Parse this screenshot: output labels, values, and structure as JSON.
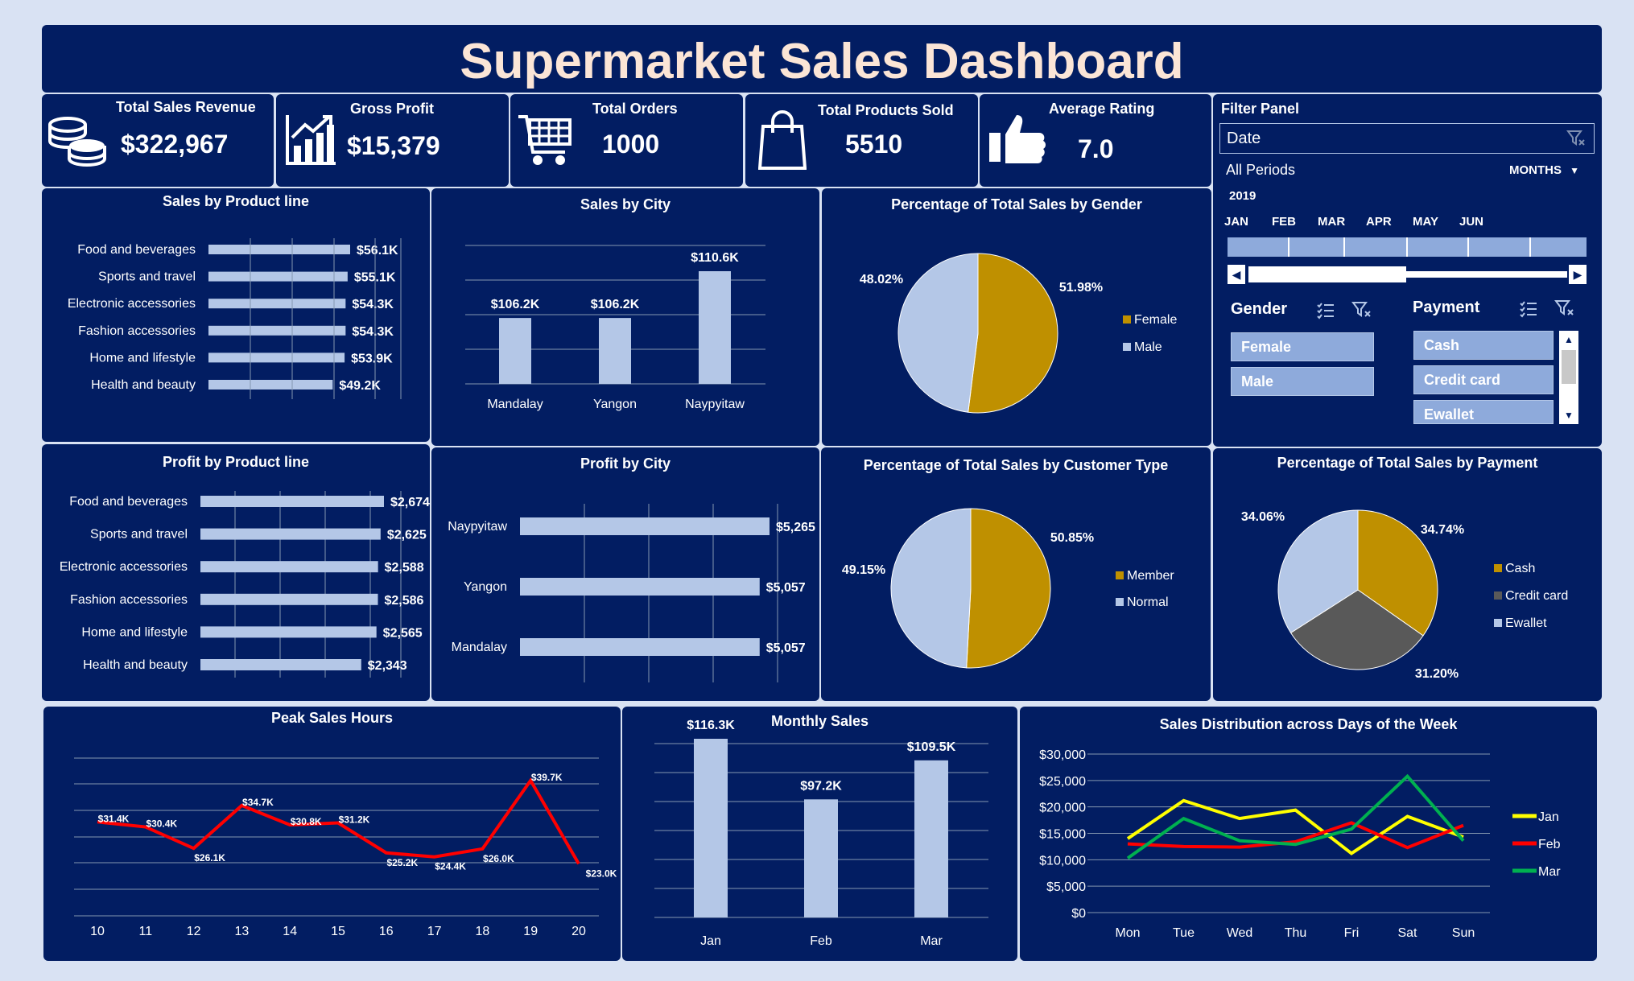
{
  "title": "Supermarket Sales Dashboard",
  "colors": {
    "panel": "#021d62",
    "bar": "#b4c7e7",
    "gold": "#bf9000",
    "grey": "#595959",
    "red": "#ff0000",
    "yellow": "#ffff00",
    "green": "#00b050"
  },
  "kpis": [
    {
      "label": "Total Sales Revenue",
      "value": "$322,967",
      "icon": "coins-icon"
    },
    {
      "label": "Gross Profit",
      "value": "$15,379",
      "icon": "bar-chart-icon"
    },
    {
      "label": "Total Orders",
      "value": "1000",
      "icon": "shopping-cart-icon"
    },
    {
      "label": "Total Products Sold",
      "value": "5510",
      "icon": "shopping-bag-icon"
    },
    {
      "label": "Average Rating",
      "value": "7.0",
      "icon": "thumbs-up-icon"
    }
  ],
  "filter": {
    "title": "Filter Panel",
    "date_label": "Date",
    "all_periods": "All Periods",
    "months_label": "MONTHS",
    "year": "2019",
    "months": [
      "JAN",
      "FEB",
      "MAR",
      "APR",
      "MAY",
      "JUN"
    ],
    "gender_label": "Gender",
    "gender_options": [
      "Female",
      "Male"
    ],
    "payment_label": "Payment",
    "payment_options": [
      "Cash",
      "Credit card",
      "Ewallet"
    ]
  },
  "chart_data": [
    {
      "id": "sales_product",
      "type": "bar",
      "orientation": "horizontal",
      "title": "Sales by Product line",
      "categories": [
        "Food and beverages",
        "Sports and travel",
        "Electronic accessories",
        "Fashion accessories",
        "Home and lifestyle",
        "Health and beauty"
      ],
      "values": [
        56.1,
        55.1,
        54.3,
        54.3,
        53.9,
        49.2
      ],
      "labels": [
        "$56.1K",
        "$55.1K",
        "$54.3K",
        "$54.3K",
        "$53.9K",
        "$49.2K"
      ]
    },
    {
      "id": "sales_city",
      "type": "bar",
      "title": "Sales by City",
      "categories": [
        "Mandalay",
        "Yangon",
        "Naypyitaw"
      ],
      "values": [
        106.2,
        106.2,
        110.6
      ],
      "labels": [
        "$106.2K",
        "$106.2K",
        "$110.6K"
      ]
    },
    {
      "id": "gender_pie",
      "type": "pie",
      "title": "Percentage of Total Sales by Gender",
      "categories": [
        "Female",
        "Male"
      ],
      "values": [
        51.98,
        48.02
      ],
      "labels": [
        "51.98%",
        "48.02%"
      ]
    },
    {
      "id": "profit_product",
      "type": "bar",
      "orientation": "horizontal",
      "title": "Profit by Product line",
      "categories": [
        "Food and beverages",
        "Sports and travel",
        "Electronic accessories",
        "Fashion accessories",
        "Home and lifestyle",
        "Health and beauty"
      ],
      "values": [
        2674,
        2625,
        2588,
        2586,
        2565,
        2343
      ],
      "labels": [
        "$2,674",
        "$2,625",
        "$2,588",
        "$2,586",
        "$2,565",
        "$2,343"
      ]
    },
    {
      "id": "profit_city",
      "type": "bar",
      "orientation": "horizontal",
      "title": "Profit by City",
      "categories": [
        "Naypyitaw",
        "Yangon",
        "Mandalay"
      ],
      "values": [
        5265,
        5057,
        5057
      ],
      "labels": [
        "$5,265",
        "$5,057",
        "$5,057"
      ]
    },
    {
      "id": "customer_pie",
      "type": "pie",
      "title": "Percentage of Total Sales by Customer Type",
      "categories": [
        "Member",
        "Normal"
      ],
      "values": [
        50.85,
        49.15
      ],
      "labels": [
        "50.85%",
        "49.15%"
      ]
    },
    {
      "id": "payment_pie",
      "type": "pie",
      "title": "Percentage of Total Sales by Payment",
      "categories": [
        "Cash",
        "Credit card",
        "Ewallet"
      ],
      "values": [
        34.74,
        31.2,
        34.06
      ],
      "labels": [
        "34.74%",
        "31.20%",
        "34.06%"
      ]
    },
    {
      "id": "peak_hours",
      "type": "line",
      "title": "Peak Sales Hours",
      "x": [
        "10",
        "11",
        "12",
        "13",
        "14",
        "15",
        "16",
        "17",
        "18",
        "19",
        "20"
      ],
      "values": [
        31.4,
        30.4,
        26.1,
        34.7,
        30.8,
        31.2,
        25.2,
        24.4,
        26.0,
        39.7,
        23.0
      ],
      "labels": [
        "$31.4K",
        "$30.4K",
        "$26.1K",
        "$34.7K",
        "$30.8K",
        "$31.2K",
        "$25.2K",
        "$24.4K",
        "$26.0K",
        "$39.7K",
        "$23.0K"
      ]
    },
    {
      "id": "monthly_sales",
      "type": "bar",
      "title": "Monthly Sales",
      "categories": [
        "Jan",
        "Feb",
        "Mar"
      ],
      "values": [
        116.3,
        97.2,
        109.5
      ],
      "labels": [
        "$116.3K",
        "$97.2K",
        "$109.5K"
      ]
    },
    {
      "id": "days_week",
      "type": "line",
      "title": "Sales Distribution across Days of the Week",
      "x": [
        "Mon",
        "Tue",
        "Wed",
        "Thu",
        "Fri",
        "Sat",
        "Sun"
      ],
      "yticks": [
        "$0",
        "$5,000",
        "$10,000",
        "$15,000",
        "$20,000",
        "$25,000",
        "$30,000"
      ],
      "ylim": [
        0,
        30000
      ],
      "series": [
        {
          "name": "Jan",
          "values": [
            14000,
            21200,
            17800,
            19400,
            11200,
            18200,
            14300
          ]
        },
        {
          "name": "Feb",
          "values": [
            13000,
            12500,
            12400,
            13400,
            17000,
            12300,
            16500
          ]
        },
        {
          "name": "Mar",
          "values": [
            10300,
            17800,
            13600,
            12900,
            15800,
            25800,
            13600
          ]
        }
      ]
    }
  ]
}
